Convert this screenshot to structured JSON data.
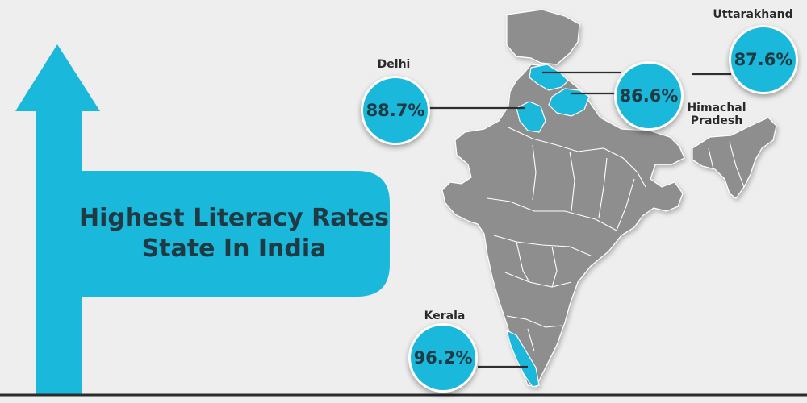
{
  "title": {
    "line1": "Highest Literacy Rates",
    "line2": "State In India"
  },
  "colors": {
    "accent": "#1ab8db",
    "map_land": "#8e8e8e",
    "map_border": "#ffffff",
    "text": "#1f3a43",
    "background": "#efeeee"
  },
  "states": [
    {
      "id": "delhi",
      "label": "Delhi",
      "value": "88.7%"
    },
    {
      "id": "himachal",
      "label_line1": "Himachal",
      "label_line2": "Pradesh",
      "value": "86.6%"
    },
    {
      "id": "uttarakhand",
      "label": "Uttarakhand",
      "value": "87.6%"
    },
    {
      "id": "kerala",
      "label": "Kerala",
      "value": "96.2%"
    }
  ]
}
